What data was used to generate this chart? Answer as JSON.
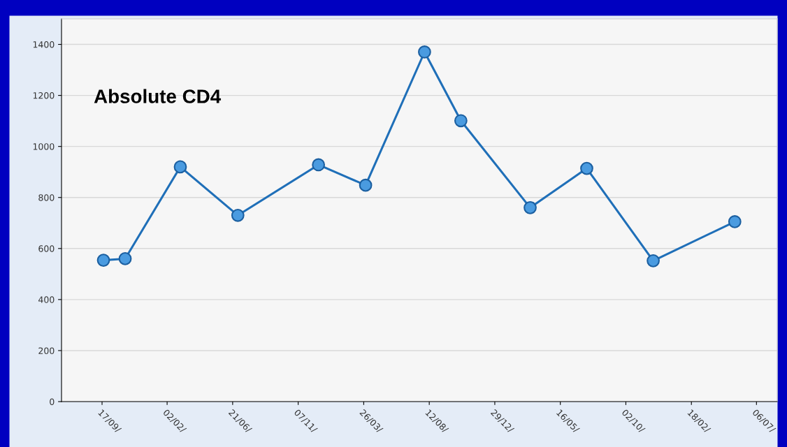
{
  "chart_data": {
    "type": "line",
    "annotations": [
      "Absolute CD4"
    ],
    "series": [
      {
        "color": "#1f6fb8",
        "x": [
          "2005-09-20",
          "2005-11-05",
          "2006-03-02",
          "2006-07-02",
          "2006-12-20",
          "2007-03-30",
          "2007-08-02",
          "2007-10-18",
          "2008-03-13",
          "2008-07-11",
          "2008-11-29",
          "2009-05-21"
        ],
        "values": [
          554,
          560,
          920,
          730,
          928,
          848,
          1370,
          1101,
          760,
          914,
          552,
          705
        ]
      }
    ],
    "xlim": [
      "2005-06-23",
      "2009-08-19"
    ],
    "xticks": [
      {
        "value": "2005-09-17",
        "label": "17/09/"
      },
      {
        "value": "2006-02-02",
        "label": "02/02/"
      },
      {
        "value": "2006-06-21",
        "label": "21/06/"
      },
      {
        "value": "2006-11-07",
        "label": "07/11/"
      },
      {
        "value": "2007-03-26",
        "label": "26/03/"
      },
      {
        "value": "2007-08-12",
        "label": "12/08/"
      },
      {
        "value": "2007-12-29",
        "label": "29/12/"
      },
      {
        "value": "2008-05-16",
        "label": "16/05/"
      },
      {
        "value": "2008-10-02",
        "label": "02/10/"
      },
      {
        "value": "2009-02-18",
        "label": "18/02/"
      },
      {
        "value": "2009-07-06",
        "label": "06/07/"
      }
    ],
    "ylim": [
      0,
      1500
    ],
    "yticks": [
      0,
      200,
      400,
      600,
      800,
      1000,
      1200,
      1400
    ],
    "grid": "y",
    "marker": "circle",
    "line_style": "solid"
  }
}
